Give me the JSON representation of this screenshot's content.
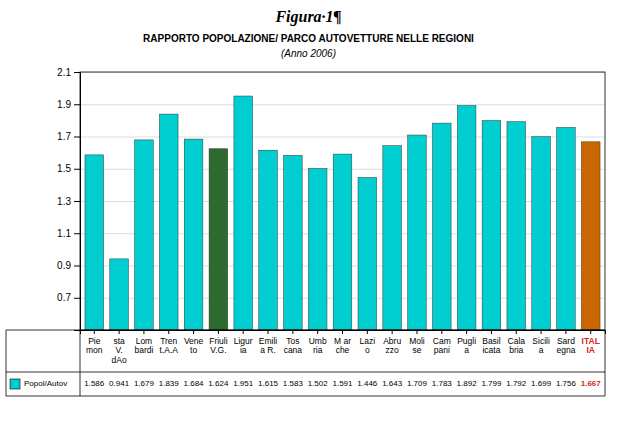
{
  "chart_data": {
    "type": "bar",
    "title": "Figura·1¶",
    "subtitle": "RAPPORTO POPOLAZIONE/ PARCO AUTOVETTURE NELLE REGIONI",
    "annotations": [
      "(Anno 2006)"
    ],
    "categories": [
      "Pie\nmon",
      "sta\nV.\ndAo",
      "Lom\nbardi",
      "Tren\nt.A.A",
      "Vene\nto",
      "Friuli\nV.G.",
      "Ligur\nia",
      "Emili\na R.",
      "Tos\ncana",
      "Umb\nria",
      "M ar\nche",
      "Lazi\no",
      "Abru\nzzo",
      "Moli\nse",
      "Cam\npani",
      "Pugli\na",
      "Basil\nicata",
      "Cala\nbria",
      "Sicili\na",
      "Sard\negna",
      "ITAL\nIA"
    ],
    "series": [
      {
        "name": "Popol/Autov",
        "color": "#00CED1",
        "colors": [
          "#00CED1",
          "#00CED1",
          "#00CED1",
          "#00CED1",
          "#00CED1",
          "#2D6A2D",
          "#00CED1",
          "#00CED1",
          "#00CED1",
          "#00CED1",
          "#00CED1",
          "#00CED1",
          "#00CED1",
          "#00CED1",
          "#00CED1",
          "#00CED1",
          "#00CED1",
          "#00CED1",
          "#00CED1",
          "#00CED1",
          "#CC6600"
        ],
        "values": [
          1.586,
          0.941,
          1.679,
          1.839,
          1.684,
          1.624,
          1.951,
          1.615,
          1.583,
          1.502,
          1.591,
          1.446,
          1.643,
          1.709,
          1.783,
          1.892,
          1.799,
          1.792,
          1.699,
          1.756,
          1.667
        ]
      }
    ],
    "ylim": [
      0.5,
      2.1
    ],
    "yticks": [
      2.1,
      1.9,
      1.7,
      1.5,
      1.3,
      1.1,
      0.9,
      0.7
    ],
    "grid": true,
    "legend": "bottom",
    "data_labels": true
  }
}
